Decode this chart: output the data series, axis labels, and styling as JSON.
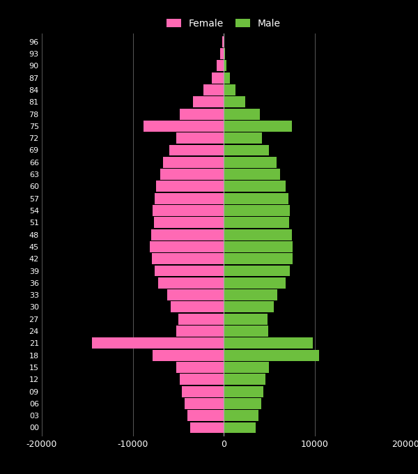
{
  "background_color": "#000000",
  "text_color": "#ffffff",
  "female_color": "#ff69b4",
  "male_color": "#6dbf3e",
  "xlim": [
    -20000,
    20000
  ],
  "xticks": [
    -20000,
    -10000,
    0,
    10000,
    20000
  ],
  "age_groups": [
    "00",
    "03",
    "06",
    "09",
    "12",
    "15",
    "18",
    "21",
    "24",
    "27",
    "30",
    "33",
    "36",
    "39",
    "42",
    "45",
    "48",
    "51",
    "54",
    "57",
    "60",
    "63",
    "66",
    "69",
    "72",
    "75",
    "78",
    "81",
    "84",
    "87",
    "90",
    "93",
    "96"
  ],
  "female": [
    -3700,
    -4000,
    -4300,
    -4600,
    -4800,
    -5200,
    -7800,
    -14500,
    -5200,
    -5000,
    -5800,
    -6200,
    -7200,
    -7600,
    -7900,
    -8100,
    -8000,
    -7700,
    -7800,
    -7600,
    -7400,
    -7000,
    -6700,
    -6000,
    -5200,
    -8800,
    -4800,
    -3400,
    -2200,
    -1300,
    -750,
    -350,
    -150
  ],
  "male": [
    3500,
    3800,
    4100,
    4400,
    4600,
    5000,
    10500,
    9800,
    4900,
    4800,
    5500,
    5900,
    6800,
    7300,
    7600,
    7600,
    7500,
    7200,
    7300,
    7100,
    6800,
    6200,
    5800,
    5000,
    4200,
    7500,
    4000,
    2400,
    1300,
    700,
    300,
    120,
    60
  ]
}
